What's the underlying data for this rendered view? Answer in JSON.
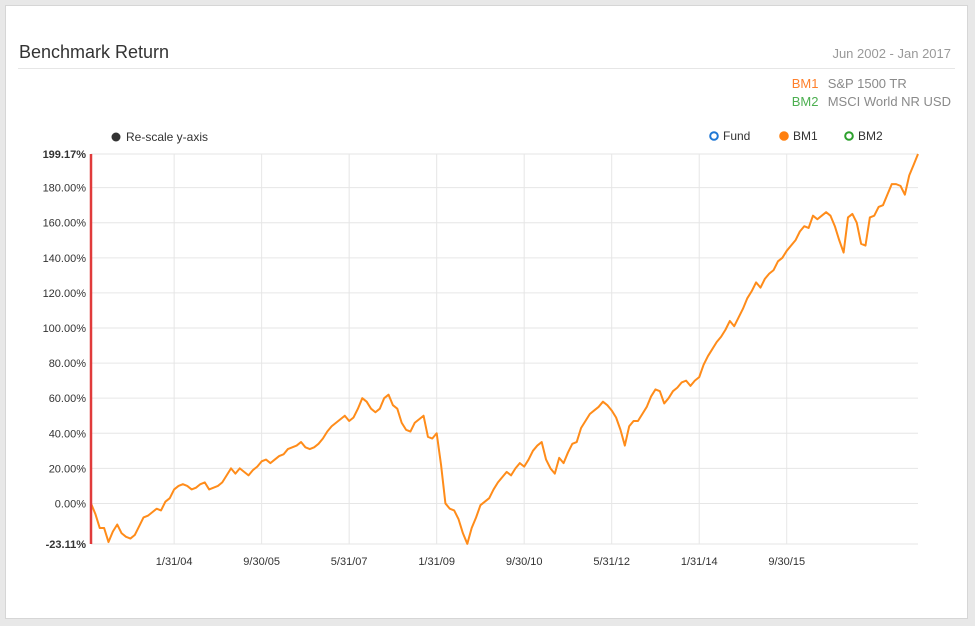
{
  "panel": {
    "title": "Benchmark Return",
    "period": "Jun 2002 - Jan 2017",
    "benchmarks": [
      {
        "code": "BM1",
        "name": "S&P 1500 TR",
        "color": "#ff7f2a"
      },
      {
        "code": "BM2",
        "name": "MSCI World NR USD",
        "color": "#4caf50"
      }
    ]
  },
  "controls": {
    "rescale_label": "Re-scale y-axis"
  },
  "colors": {
    "series_line": "#ff8c1a",
    "axis_left": "#e03b3b",
    "grid": "#e6e6e6",
    "fund": "#1f77d4",
    "bm1": "#ff7f0e",
    "bm2": "#2ca02c"
  },
  "chart_data": {
    "type": "line",
    "title": "",
    "xlabel": "",
    "ylabel": "",
    "ylim": [
      -23.11,
      199.17
    ],
    "ytick_labels": [
      "199.17%",
      "180.00%",
      "160.00%",
      "140.00%",
      "120.00%",
      "100.00%",
      "80.00%",
      "60.00%",
      "40.00%",
      "20.00%",
      "0.00%",
      "-23.11%"
    ],
    "ytick_values": [
      199.17,
      180,
      160,
      140,
      120,
      100,
      80,
      60,
      40,
      20,
      0,
      -23.11
    ],
    "xtick_labels": [
      "1/31/04",
      "9/30/05",
      "5/31/07",
      "1/31/09",
      "9/30/10",
      "5/31/12",
      "1/31/14",
      "9/30/15"
    ],
    "xtick_index": [
      19,
      39,
      59,
      79,
      99,
      119,
      139,
      159
    ],
    "legend": {
      "position": "top-right",
      "items": [
        {
          "label": "Fund",
          "marker": "hollow"
        },
        {
          "label": "BM1",
          "marker": "filled"
        },
        {
          "label": "BM2",
          "marker": "hollow"
        }
      ]
    },
    "series": [
      {
        "name": "BM1",
        "values": [
          0,
          -6,
          -14,
          -14,
          -22,
          -16,
          -12,
          -17,
          -19,
          -20,
          -18,
          -13,
          -8,
          -7,
          -5,
          -3,
          -4,
          1,
          3,
          8,
          10,
          11,
          10,
          8,
          9,
          11,
          12,
          8,
          9,
          10,
          12,
          16,
          20,
          17,
          20,
          18,
          16,
          19,
          21,
          24,
          25,
          23,
          25,
          27,
          28,
          31,
          32,
          33,
          35,
          32,
          31,
          32,
          34,
          37,
          41,
          44,
          46,
          48,
          50,
          47,
          49,
          54,
          60,
          58,
          54,
          52,
          54,
          60,
          62,
          56,
          54,
          46,
          42,
          41,
          46,
          48,
          50,
          38,
          37,
          40,
          22,
          0,
          -3,
          -4,
          -9,
          -17,
          -23,
          -14,
          -8,
          -1,
          1,
          3,
          8,
          12,
          15,
          18,
          16,
          20,
          23,
          21,
          25,
          30,
          33,
          35,
          25,
          20,
          17,
          26,
          23,
          29,
          34,
          35,
          43,
          47,
          51,
          53,
          55,
          58,
          56,
          53,
          49,
          42,
          33,
          44,
          47,
          47,
          51,
          55,
          61,
          65,
          64,
          57,
          60,
          64,
          66,
          69,
          70,
          67,
          70,
          72,
          79,
          84,
          88,
          92,
          95,
          99,
          104,
          101,
          106,
          111,
          117,
          121,
          126,
          123,
          128,
          131,
          133,
          138,
          140,
          144,
          147,
          150,
          155,
          158,
          157,
          164,
          162,
          164,
          166,
          164,
          158,
          150,
          143,
          163,
          165,
          160,
          148,
          147,
          163,
          164,
          169,
          170,
          176,
          182,
          182,
          181,
          176,
          187,
          193,
          199.17
        ]
      }
    ]
  }
}
